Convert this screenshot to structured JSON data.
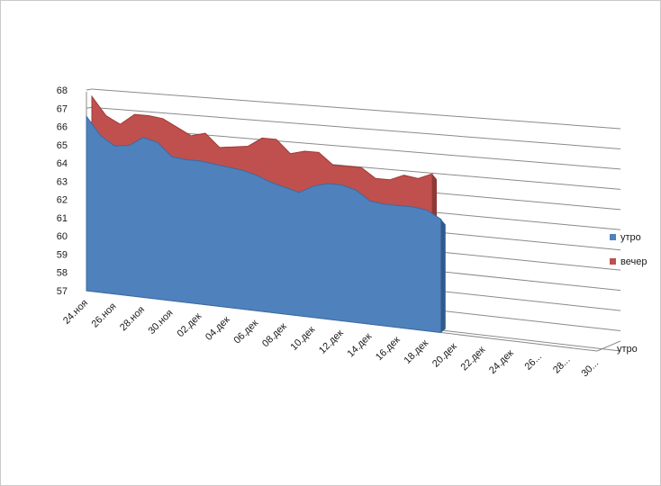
{
  "chart_data": {
    "type": "area",
    "view": "3d",
    "y_ticks": [
      "57",
      "58",
      "59",
      "60",
      "61",
      "62",
      "63",
      "64",
      "65",
      "66",
      "67",
      "68"
    ],
    "ylim": [
      57,
      68
    ],
    "x_tick_labels": [
      "24.ноя",
      "26.ноя",
      "28.ноя",
      "30.ноя",
      "02.дек",
      "04.дек",
      "06.дек",
      "08.дек",
      "10.дек",
      "12.дек",
      "14.дек",
      "16.дек",
      "18.дек",
      "20.дек",
      "22.дек",
      "24.дек",
      "26...",
      "28...",
      "30..."
    ],
    "categories": [
      "24.ноя",
      "25.ноя",
      "26.ноя",
      "27.ноя",
      "28.ноя",
      "29.ноя",
      "30.ноя",
      "01.дек",
      "02.дек",
      "03.дек",
      "04.дек",
      "05.дек",
      "06.дек",
      "07.дек",
      "08.дек",
      "09.дек",
      "10.дек",
      "11.дек",
      "12.дек",
      "13.дек",
      "14.дек",
      "15.дек",
      "16.дек",
      "17.дек",
      "18.дек",
      "19.дек"
    ],
    "series": [
      {
        "name": "утро",
        "color": "#4f81bd",
        "values": [
          66.6,
          65.6,
          65.1,
          65.2,
          65.7,
          65.5,
          64.8,
          64.7,
          64.7,
          64.6,
          64.5,
          64.4,
          64.2,
          63.9,
          63.7,
          63.5,
          63.9,
          64.1,
          64.1,
          63.9,
          63.4,
          63.3,
          63.3,
          63.3,
          63.2,
          62.8
        ]
      },
      {
        "name": "вечер",
        "color": "#c0504d",
        "values": [
          67.2,
          66.2,
          65.8,
          66.4,
          66.4,
          66.3,
          65.9,
          65.5,
          65.7,
          65.0,
          65.1,
          65.2,
          65.7,
          65.7,
          65.0,
          65.2,
          65.2,
          64.6,
          64.6,
          64.6,
          64.1,
          64.1,
          64.4,
          64.3,
          64.6,
          null
        ]
      }
    ],
    "depth_axis_label": "утро",
    "legend": [
      "утро",
      "вечер"
    ],
    "legend_position": "right",
    "grid": true
  }
}
